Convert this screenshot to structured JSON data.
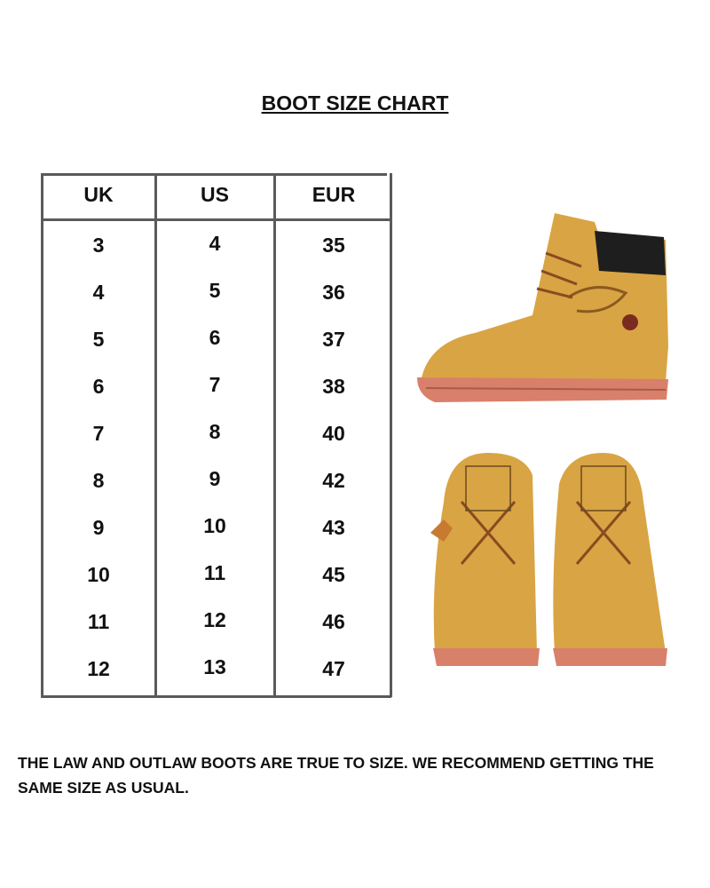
{
  "title": "BOOT SIZE CHART",
  "table": {
    "headers": [
      "UK",
      "US",
      "EUR"
    ],
    "rows": [
      [
        "3",
        "4",
        "35"
      ],
      [
        "4",
        "5",
        "36"
      ],
      [
        "5",
        "6",
        "37"
      ],
      [
        "6",
        "7",
        "38"
      ],
      [
        "7",
        "8",
        "40"
      ],
      [
        "8",
        "9",
        "42"
      ],
      [
        "9",
        "10",
        "43"
      ],
      [
        "10",
        "11",
        "45"
      ],
      [
        "11",
        "12",
        "46"
      ],
      [
        "12",
        "13",
        "47"
      ]
    ]
  },
  "note": "THE LAW AND OUTLAW BOOTS ARE TRUE TO SIZE. WE RECOMMEND GETTING THE SAME SIZE AS USUAL.",
  "colors": {
    "boot": "#d9a443",
    "sole": "#d8806a",
    "collar": "#1e1e1e",
    "line": "#5a5a5a"
  }
}
